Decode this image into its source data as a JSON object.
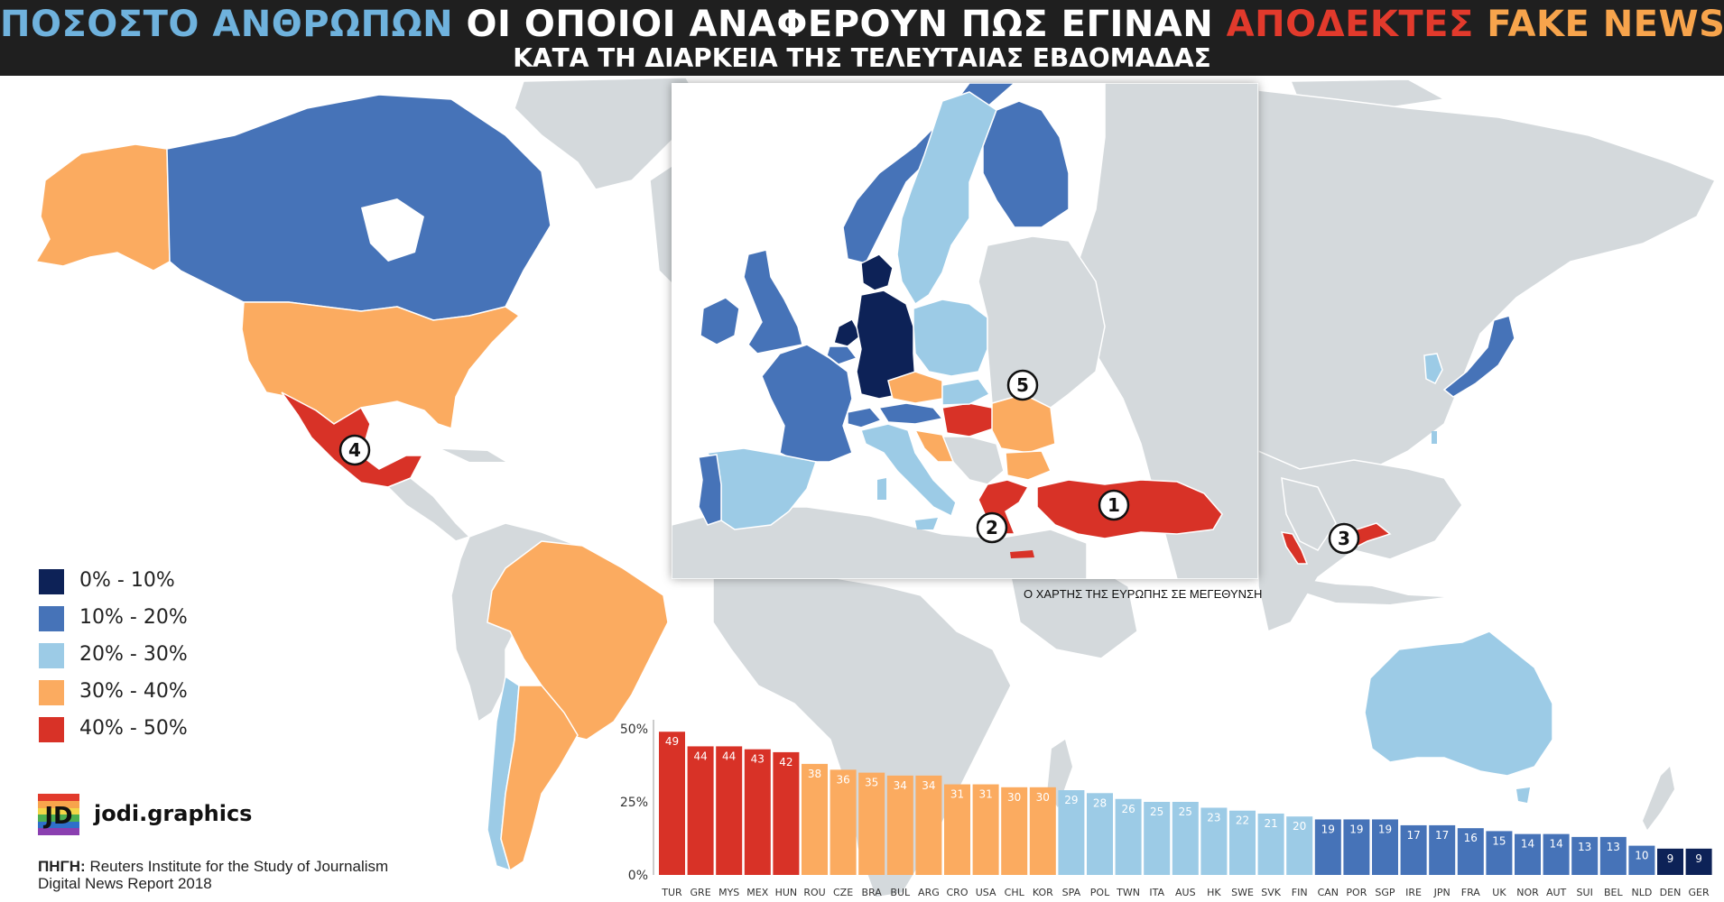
{
  "header": {
    "title_parts": [
      {
        "text": "ΠΟΣΟΣΤΟ ΑΝΘΡΩΠΩΝ ",
        "color": "#6fb2dd"
      },
      {
        "text": "ΟΙ ΟΠΟΙΟΙ ΑΝΑΦΕΡΟΥΝ ΠΩΣ ΕΓΙΝΑΝ ",
        "color": "#ffffff"
      },
      {
        "text": "ΑΠΟΔΕΚΤΕΣ ",
        "color": "#e23a2c"
      },
      {
        "text": "FAKE NEWS",
        "color": "#f7a44c"
      }
    ],
    "subtitle": "ΚΑΤΑ ΤΗ ΔΙΑΡΚΕΙΑ ΤΗΣ ΤΕΛΕΥΤΑΙΑΣ ΕΒΔΟΜΑΔΑΣ"
  },
  "colors": {
    "band_0_10": "#0d2257",
    "band_10_20": "#4673b8",
    "band_20_30": "#9ccbe6",
    "band_30_40": "#fbab60",
    "band_40_50": "#d83227",
    "no_data": "#d4d9dc",
    "header_bg": "#1f1f1f"
  },
  "legend": [
    {
      "label": "0% - 10%",
      "color": "#0d2257"
    },
    {
      "label": "10% - 20%",
      "color": "#4673b8"
    },
    {
      "label": "20% - 30%",
      "color": "#9ccbe6"
    },
    {
      "label": "30% - 40%",
      "color": "#fbab60"
    },
    {
      "label": "40% - 50%",
      "color": "#d83227"
    }
  ],
  "markers": [
    "1",
    "2",
    "3",
    "4",
    "5"
  ],
  "inset_caption": "Ο ΧΑΡΤΗΣ ΤΗΣ ΕΥΡΩΠΗΣ ΣΕ ΜΕΓΕΘΥΝΣΗ",
  "brand": {
    "name": "jodi.graphics",
    "logo_letters": "JD"
  },
  "source": {
    "label": "ΠΗΓΗ:",
    "line1": " Reuters Institute for the Study of Journalism",
    "line2": "Digital News Report 2018"
  },
  "chart_data": {
    "type": "bar",
    "categories": [
      "TUR",
      "GRE",
      "MYS",
      "MEX",
      "HUN",
      "ROU",
      "CZE",
      "BRA",
      "BUL",
      "ARG",
      "CRO",
      "USA",
      "CHL",
      "KOR",
      "SPA",
      "POL",
      "TWN",
      "ITA",
      "AUS",
      "HK",
      "SWE",
      "SVK",
      "FIN",
      "CAN",
      "POR",
      "SGP",
      "IRE",
      "JPN",
      "FRA",
      "UK",
      "NOR",
      "AUT",
      "SUI",
      "BEL",
      "NLD",
      "DEN",
      "GER"
    ],
    "values": [
      49,
      44,
      44,
      43,
      42,
      38,
      36,
      35,
      34,
      34,
      31,
      31,
      30,
      30,
      29,
      28,
      26,
      25,
      25,
      23,
      22,
      21,
      20,
      19,
      19,
      19,
      17,
      17,
      16,
      15,
      14,
      14,
      13,
      13,
      10,
      9,
      9
    ],
    "y_tick_labels": [
      "0%",
      "25%",
      "50%"
    ],
    "y_ticks": [
      0,
      25,
      50
    ],
    "ylim": [
      0,
      50
    ]
  }
}
